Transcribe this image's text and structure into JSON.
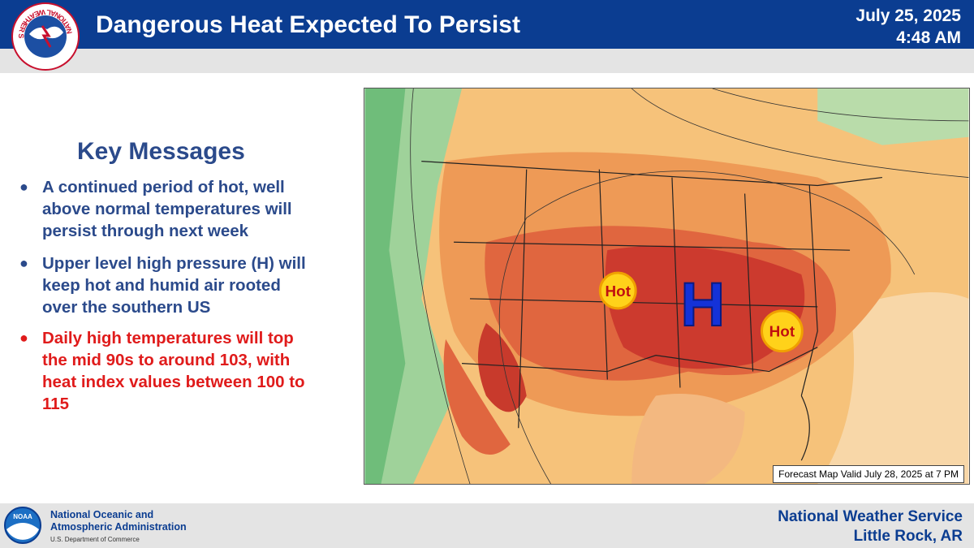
{
  "header": {
    "title": "Dangerous Heat Expected To Persist",
    "date": "July 25, 2025",
    "time": "4:48 AM",
    "logo_text": "NATIONAL WEATHER SERVICE"
  },
  "key_messages": {
    "title": "Key Messages",
    "bullets": [
      "A continued period of hot, well above normal temperatures will persist through next week",
      "Upper level high pressure (H) will keep hot and humid air rooted over the southern US",
      "Daily high temperatures will top the mid 90s to around 103, with heat index values between 100 to 115"
    ]
  },
  "map": {
    "high_label": "H",
    "hot_labels": [
      "Hot",
      "Hot"
    ],
    "caption": "Forecast Map Valid July 28, 2025 at 7 PM"
  },
  "footer": {
    "noaa_logo": "NOAA",
    "noaa_name_1": "National Oceanic and",
    "noaa_name_2": "Atmospheric Administration",
    "noaa_dept": "U.S. Department of Commerce",
    "office_1": "National Weather Service",
    "office_2": "Little Rock, AR"
  }
}
